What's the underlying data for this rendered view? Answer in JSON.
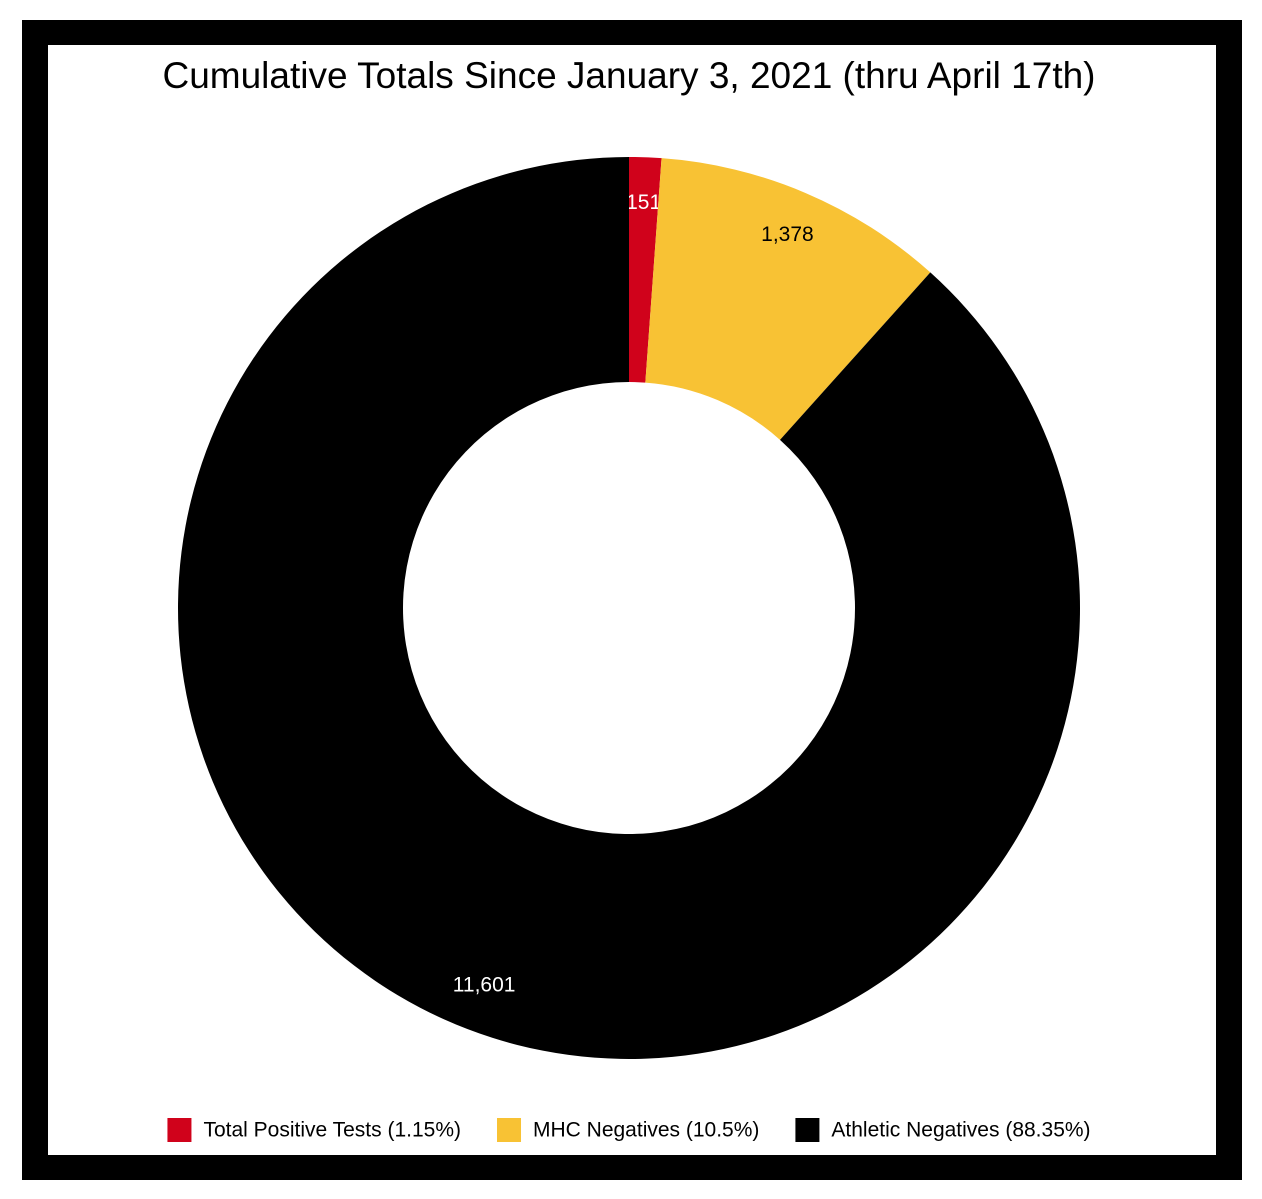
{
  "chart_data": {
    "type": "donut",
    "title": "Cumulative Totals Since January 3, 2021 (thru April 17th)",
    "categories": [
      "Total Positive Tests (1.15%)",
      "MHC Negatives (10.5%)",
      "Athletic Negatives (88.35%)"
    ],
    "values": [
      151,
      1378,
      11601
    ],
    "value_labels": [
      "151",
      "1,378",
      "11,601"
    ],
    "colors": [
      "#d0021b",
      "#f8c234",
      "#000000"
    ],
    "legend": "bottom"
  }
}
